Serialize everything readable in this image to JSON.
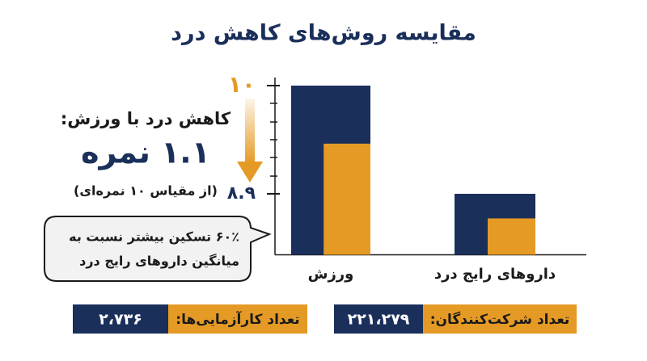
{
  "chart_data": {
    "type": "bar",
    "title": "مقایسه روش‌های کاهش درد",
    "categories": [
      "ورزش",
      "داروهای رایج درد"
    ],
    "series": [
      {
        "color": "#1b2f5b",
        "values": [
          10,
          8.9
        ]
      },
      {
        "color": "#e49a25",
        "values": [
          9.41,
          8.65
        ]
      }
    ],
    "ylim": [
      8.28,
      10
    ],
    "yticks": [
      {
        "value": 10,
        "label": "۱۰"
      },
      {
        "value": 8.9,
        "label": "۸.۹"
      }
    ],
    "yminorticks": [
      9.82,
      9.63,
      9.45,
      9.27,
      9.08
    ],
    "annotation": {
      "heading": "کاهش درد با ورزش:",
      "value": "۱.۱ نمره",
      "note": "(از مقیاس ۱۰ نمره‌ای)"
    },
    "callout": [
      "۶۰٪ تسکین بیشتر نسبت به",
      "میانگین داروهای رایج درد"
    ],
    "stats": [
      {
        "label": "تعداد کارآزمایی‌ها:",
        "value": "۲،۷۳۶"
      },
      {
        "label": "تعداد شرکت‌کنندگان:",
        "value": "۲۲۱،۲۷۹"
      }
    ]
  }
}
